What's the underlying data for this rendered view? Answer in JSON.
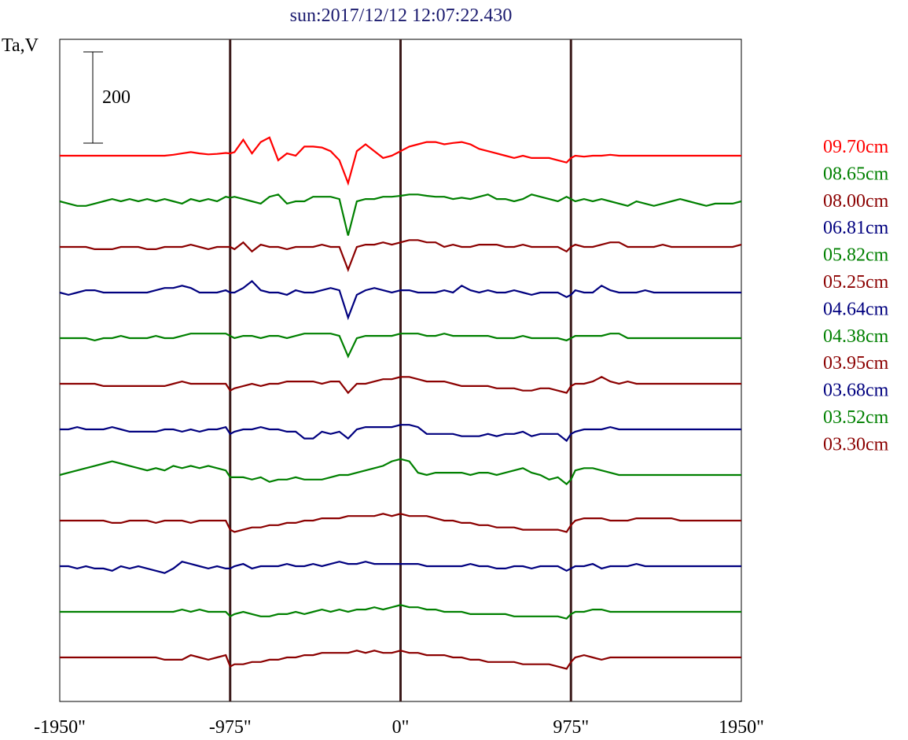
{
  "chart_data": {
    "type": "line",
    "title": "sun:2017/12/12 12:07:22.430",
    "ylabel": "Ta,V",
    "scale_bar_label": "200",
    "xlim": [
      -1950,
      1950
    ],
    "x_ticks": [
      -1950,
      -975,
      0,
      975,
      1950
    ],
    "x_tick_labels": [
      "-1950\"",
      "-975\"",
      "0\"",
      "975\"",
      "1950\""
    ],
    "vertical_markers": [
      -975,
      0,
      975
    ],
    "grid": false,
    "legend_position": "right",
    "x": [
      -1950,
      -1900,
      -1850,
      -1800,
      -1750,
      -1700,
      -1650,
      -1600,
      -1550,
      -1500,
      -1450,
      -1400,
      -1350,
      -1300,
      -1250,
      -1200,
      -1150,
      -1100,
      -1050,
      -1000,
      -975,
      -950,
      -900,
      -850,
      -800,
      -750,
      -700,
      -650,
      -600,
      -550,
      -500,
      -450,
      -400,
      -350,
      -300,
      -250,
      -200,
      -150,
      -100,
      -50,
      0,
      50,
      100,
      150,
      200,
      250,
      300,
      350,
      400,
      450,
      500,
      550,
      600,
      650,
      700,
      750,
      800,
      850,
      900,
      950,
      975,
      1000,
      1050,
      1100,
      1150,
      1200,
      1250,
      1300,
      1350,
      1400,
      1450,
      1500,
      1550,
      1600,
      1650,
      1700,
      1750,
      1800,
      1850,
      1900,
      1950
    ],
    "series": [
      {
        "name": "09.70cm",
        "color": "#ff0000",
        "offset": 1000,
        "values": [
          0,
          0,
          0,
          0,
          0,
          0,
          0,
          0,
          0,
          0,
          0,
          0,
          0,
          2,
          5,
          8,
          5,
          3,
          4,
          6,
          5,
          8,
          35,
          5,
          30,
          40,
          -10,
          5,
          0,
          20,
          20,
          18,
          10,
          -10,
          -60,
          10,
          25,
          10,
          -5,
          0,
          10,
          20,
          25,
          30,
          30,
          25,
          28,
          30,
          25,
          15,
          10,
          5,
          0,
          -5,
          0,
          -5,
          -5,
          -5,
          -10,
          -15,
          -5,
          0,
          -2,
          0,
          0,
          2,
          0,
          0,
          0,
          0,
          0,
          0,
          0,
          0,
          0,
          0,
          0,
          0,
          0,
          0,
          0
        ]
      },
      {
        "name": "08.65cm",
        "color": "#008000",
        "offset": 900,
        "values": [
          0,
          -5,
          -10,
          -10,
          -5,
          0,
          5,
          0,
          5,
          0,
          5,
          0,
          5,
          0,
          -5,
          5,
          0,
          5,
          0,
          10,
          8,
          10,
          5,
          0,
          -5,
          10,
          15,
          -5,
          0,
          0,
          10,
          10,
          10,
          5,
          -75,
          0,
          5,
          5,
          10,
          10,
          12,
          15,
          15,
          12,
          10,
          10,
          5,
          8,
          5,
          10,
          15,
          5,
          5,
          0,
          5,
          15,
          10,
          5,
          0,
          10,
          5,
          0,
          5,
          0,
          5,
          0,
          -5,
          -10,
          0,
          -5,
          -10,
          -5,
          0,
          5,
          0,
          -5,
          -10,
          -5,
          -5,
          -5,
          0
        ]
      },
      {
        "name": "08.00cm",
        "color": "#8b0000",
        "offset": 800,
        "values": [
          0,
          0,
          0,
          0,
          -5,
          -5,
          -5,
          0,
          0,
          0,
          -5,
          -5,
          0,
          0,
          0,
          5,
          0,
          -5,
          0,
          0,
          0,
          -5,
          10,
          -10,
          5,
          0,
          0,
          -5,
          0,
          0,
          0,
          5,
          0,
          0,
          -50,
          0,
          5,
          5,
          10,
          5,
          10,
          15,
          15,
          10,
          10,
          0,
          5,
          0,
          0,
          5,
          5,
          5,
          0,
          0,
          5,
          0,
          0,
          0,
          0,
          -10,
          0,
          5,
          0,
          0,
          5,
          10,
          10,
          0,
          0,
          0,
          0,
          5,
          0,
          0,
          0,
          0,
          0,
          0,
          0,
          0,
          5
        ]
      },
      {
        "name": "06.81cm",
        "color": "#00007f",
        "offset": 700,
        "values": [
          0,
          -5,
          0,
          5,
          5,
          0,
          0,
          0,
          0,
          0,
          0,
          5,
          10,
          10,
          15,
          10,
          0,
          0,
          0,
          5,
          0,
          0,
          10,
          25,
          5,
          0,
          0,
          -5,
          5,
          0,
          0,
          5,
          10,
          5,
          -55,
          -5,
          5,
          10,
          5,
          0,
          5,
          5,
          0,
          0,
          0,
          5,
          0,
          15,
          5,
          0,
          5,
          0,
          0,
          5,
          0,
          -5,
          0,
          0,
          0,
          -10,
          -5,
          5,
          0,
          0,
          15,
          5,
          0,
          0,
          0,
          5,
          0,
          0,
          0,
          0,
          0,
          0,
          0,
          0,
          0,
          0,
          0
        ]
      },
      {
        "name": "05.82cm",
        "color": "#008000",
        "offset": 600,
        "values": [
          0,
          0,
          0,
          0,
          -5,
          0,
          0,
          5,
          0,
          0,
          0,
          5,
          0,
          0,
          5,
          10,
          10,
          10,
          10,
          10,
          5,
          0,
          5,
          5,
          0,
          5,
          5,
          0,
          5,
          10,
          10,
          10,
          10,
          5,
          -40,
          0,
          5,
          5,
          5,
          5,
          10,
          10,
          10,
          5,
          5,
          10,
          5,
          5,
          5,
          5,
          5,
          0,
          0,
          0,
          5,
          0,
          0,
          0,
          0,
          -5,
          0,
          5,
          5,
          5,
          5,
          10,
          10,
          0,
          0,
          0,
          0,
          0,
          0,
          0,
          0,
          0,
          0,
          0,
          0,
          0,
          0
        ]
      },
      {
        "name": "05.25cm",
        "color": "#8b0000",
        "offset": 500,
        "values": [
          0,
          0,
          0,
          0,
          0,
          -5,
          -5,
          -5,
          -5,
          -5,
          -5,
          -5,
          -5,
          0,
          5,
          0,
          0,
          0,
          0,
          0,
          -15,
          -10,
          -5,
          0,
          -5,
          0,
          0,
          5,
          5,
          5,
          5,
          0,
          5,
          5,
          -20,
          0,
          0,
          5,
          10,
          10,
          15,
          15,
          10,
          5,
          5,
          5,
          0,
          -5,
          -5,
          -5,
          -5,
          -10,
          -10,
          -10,
          -15,
          -15,
          -10,
          -10,
          -15,
          -20,
          -5,
          0,
          0,
          5,
          15,
          5,
          0,
          5,
          0,
          0,
          0,
          0,
          0,
          0,
          0,
          0,
          0,
          0,
          0,
          0,
          0
        ]
      },
      {
        "name": "04.64cm",
        "color": "#00007f",
        "offset": 400,
        "values": [
          0,
          0,
          5,
          0,
          0,
          0,
          5,
          0,
          -5,
          -5,
          -5,
          -5,
          0,
          0,
          -5,
          0,
          -5,
          0,
          0,
          5,
          -10,
          -5,
          0,
          0,
          5,
          0,
          0,
          -5,
          -5,
          -20,
          -20,
          -5,
          -10,
          -5,
          -20,
          0,
          5,
          5,
          5,
          5,
          10,
          10,
          5,
          -10,
          -10,
          -10,
          -10,
          -15,
          -15,
          -15,
          -10,
          -15,
          -10,
          -10,
          -5,
          -15,
          -10,
          -10,
          -10,
          -25,
          -10,
          -5,
          0,
          0,
          0,
          5,
          0,
          0,
          0,
          0,
          0,
          0,
          0,
          0,
          0,
          0,
          0,
          0,
          0,
          0,
          0
        ]
      },
      {
        "name": "04.38cm",
        "color": "#008000",
        "offset": 300,
        "values": [
          0,
          5,
          10,
          15,
          20,
          25,
          30,
          25,
          20,
          15,
          10,
          15,
          10,
          20,
          15,
          20,
          15,
          20,
          15,
          10,
          -5,
          -5,
          -5,
          -10,
          -5,
          -15,
          -10,
          -10,
          -5,
          -10,
          -10,
          -10,
          -5,
          0,
          0,
          5,
          10,
          15,
          20,
          30,
          35,
          30,
          5,
          0,
          5,
          5,
          5,
          5,
          0,
          5,
          5,
          0,
          5,
          10,
          15,
          5,
          0,
          -10,
          -5,
          -20,
          -10,
          10,
          15,
          15,
          10,
          5,
          0,
          0,
          0,
          0,
          0,
          0,
          0,
          0,
          0,
          0,
          0,
          0,
          0,
          0,
          0
        ]
      },
      {
        "name": "03.95cm",
        "color": "#8b0000",
        "offset": 200,
        "values": [
          0,
          0,
          0,
          0,
          0,
          0,
          -5,
          -5,
          0,
          0,
          0,
          -5,
          0,
          0,
          0,
          -5,
          0,
          0,
          0,
          0,
          -20,
          -25,
          -20,
          -15,
          -15,
          -10,
          -10,
          -5,
          -5,
          0,
          0,
          5,
          5,
          5,
          10,
          10,
          10,
          10,
          15,
          10,
          15,
          10,
          10,
          10,
          5,
          0,
          0,
          -5,
          -5,
          -10,
          -10,
          -15,
          -15,
          -15,
          -20,
          -20,
          -20,
          -20,
          -20,
          -25,
          -10,
          0,
          5,
          5,
          5,
          0,
          0,
          0,
          5,
          5,
          5,
          5,
          5,
          0,
          0,
          0,
          0,
          0,
          0,
          0,
          0
        ]
      },
      {
        "name": "03.68cm",
        "color": "#00007f",
        "offset": 100,
        "values": [
          0,
          0,
          -5,
          0,
          -5,
          -5,
          -10,
          0,
          -5,
          0,
          -5,
          -10,
          -15,
          -5,
          10,
          5,
          0,
          -5,
          0,
          -5,
          -5,
          0,
          5,
          -5,
          0,
          0,
          0,
          5,
          0,
          0,
          5,
          0,
          5,
          10,
          5,
          5,
          10,
          5,
          5,
          5,
          5,
          5,
          5,
          0,
          0,
          0,
          0,
          0,
          5,
          0,
          0,
          -5,
          -5,
          0,
          0,
          -5,
          0,
          0,
          0,
          -10,
          -5,
          0,
          0,
          5,
          -5,
          0,
          0,
          0,
          5,
          0,
          0,
          0,
          0,
          0,
          0,
          0,
          0,
          0,
          0,
          0,
          0
        ]
      },
      {
        "name": "03.52cm",
        "color": "#008000",
        "offset": 0,
        "values": [
          0,
          0,
          0,
          0,
          0,
          0,
          0,
          0,
          0,
          0,
          0,
          0,
          0,
          0,
          5,
          0,
          5,
          0,
          0,
          0,
          -10,
          -5,
          0,
          -5,
          -10,
          -10,
          -5,
          -5,
          0,
          -5,
          0,
          5,
          0,
          5,
          0,
          5,
          5,
          10,
          5,
          10,
          15,
          10,
          10,
          5,
          5,
          0,
          0,
          0,
          -5,
          -5,
          -5,
          -5,
          -5,
          -10,
          -10,
          -10,
          -10,
          -10,
          -10,
          -15,
          -5,
          0,
          0,
          5,
          5,
          0,
          0,
          0,
          0,
          0,
          0,
          0,
          0,
          0,
          0,
          0,
          0,
          0,
          0,
          0,
          0
        ]
      },
      {
        "name": "03.30cm",
        "color": "#8b0000",
        "offset": -100,
        "values": [
          0,
          0,
          0,
          0,
          0,
          0,
          0,
          0,
          0,
          0,
          0,
          0,
          -5,
          -5,
          -5,
          5,
          0,
          -5,
          0,
          5,
          -20,
          -15,
          -15,
          -10,
          -10,
          -5,
          -5,
          0,
          0,
          5,
          5,
          10,
          10,
          10,
          10,
          15,
          10,
          15,
          10,
          10,
          15,
          10,
          10,
          5,
          5,
          5,
          0,
          0,
          -5,
          -5,
          -10,
          -10,
          -10,
          -10,
          -15,
          -15,
          -15,
          -15,
          -20,
          -25,
          -10,
          0,
          5,
          0,
          -5,
          0,
          0,
          0,
          0,
          0,
          0,
          0,
          0,
          0,
          0,
          0,
          0,
          0,
          0,
          0,
          0
        ]
      }
    ]
  }
}
